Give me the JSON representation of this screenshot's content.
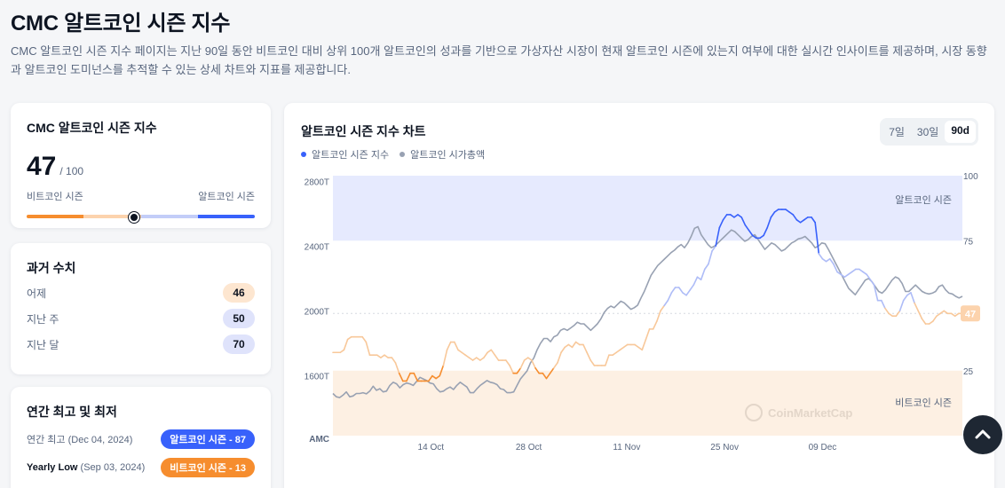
{
  "page": {
    "title": "CMC 알트코인 시즌 지수",
    "description": "CMC 알트코인 시즌 지수 페이지는 지난 90일 동안 비트코인 대비 상위 100개 알트코인의 성과를 기반으로 가상자산 시장이 현재 알트코인 시즌에 있는지 여부에 대한 실시간 인사이트를 제공하며, 시장 동향과 알트코인 도미넌스를 추적할 수 있는 상세 차트와 지표를 제공합니다."
  },
  "index_card": {
    "title": "CMC 알트코인 시즌 지수",
    "value": "47",
    "max": "/ 100",
    "left_label": "비트코인 시즌",
    "right_label": "알트코인 시즌",
    "level": 0.47
  },
  "history": {
    "title": "과거 수치",
    "rows": [
      {
        "label": "어제",
        "value": "46"
      },
      {
        "label": "지난 주",
        "value": "50"
      },
      {
        "label": "지난 달",
        "value": "70"
      }
    ]
  },
  "yearly": {
    "title": "연간 최고 및 최저",
    "high_label": "연간 최고",
    "high_date": "(Dec 04, 2024)",
    "high_badge": "알트코인 시즌 - 87",
    "low_label": "Yearly Low",
    "low_date": "(Sep 03, 2024)",
    "low_badge": "비트코인 시즌 - 13"
  },
  "colors": {
    "btc_orange": "#f68d2e",
    "alt_blue": "#3861fb",
    "gray_line": "#98a1b2"
  },
  "chart_data": {
    "type": "line",
    "title": "알트코인 시즌 지수 차트",
    "range_tabs": [
      "7일",
      "30일",
      "90d"
    ],
    "active_tab": "90d",
    "legend": [
      "알트코인 시즌 지수",
      "알트코인 시가총액"
    ],
    "x_tick_labels": [
      "14 Oct",
      "28 Oct",
      "11 Nov",
      "25 Nov",
      "09 Dec"
    ],
    "x_tick_day": [
      14,
      28,
      42,
      56,
      70
    ],
    "x_range_day": [
      0,
      90
    ],
    "left_axis": {
      "ticks": [
        "2800T",
        "2400T",
        "2000T",
        "1600T"
      ],
      "values": [
        2800,
        2400,
        2000,
        1600
      ],
      "range": [
        1230,
        2835
      ],
      "corner_label": "AMC"
    },
    "right_axis": {
      "ticks": [
        "100",
        "75",
        "25"
      ],
      "values": [
        100,
        75,
        25
      ],
      "range": [
        0,
        100
      ]
    },
    "zones": {
      "alt_label": "알트코인 시즌",
      "alt_from": 75,
      "btc_label": "비트코인 시즌",
      "btc_to": 25
    },
    "current_badge": "47",
    "current_value": 47,
    "watermark": "CoinMarketCap",
    "series": [
      {
        "name": "알트코인 시즌 지수",
        "axis": "right",
        "start_day": 0,
        "step_days": 1,
        "values": [
          32,
          32,
          32,
          33,
          37,
          38,
          38,
          38,
          38,
          36,
          31,
          31,
          31,
          30,
          31,
          30,
          30,
          28,
          24,
          21,
          21,
          24,
          24,
          21,
          21,
          21,
          21,
          23,
          22,
          23,
          27,
          33,
          36,
          36,
          33,
          32,
          31,
          30,
          29,
          30,
          29,
          30,
          32,
          33,
          31,
          29,
          29,
          29,
          27,
          24,
          24,
          26,
          29,
          30,
          29,
          26,
          24,
          24,
          22,
          24,
          26,
          28,
          32,
          34,
          35,
          34,
          36,
          35,
          35,
          32,
          29,
          27,
          27,
          27,
          27,
          31,
          31,
          32,
          33,
          34,
          35,
          35,
          35,
          34,
          33,
          37,
          41,
          41,
          44,
          48,
          50,
          52,
          55,
          57,
          57,
          55,
          54,
          56,
          58,
          61,
          60,
          64,
          66,
          71,
          73,
          80,
          83,
          85,
          85,
          84,
          85,
          84,
          81,
          79,
          77,
          76,
          76,
          77,
          80,
          84,
          86,
          87,
          87,
          87,
          86,
          85,
          83,
          82,
          83,
          84,
          84,
          82,
          70,
          68,
          67,
          68,
          66,
          63,
          62,
          61,
          62,
          63,
          64,
          64,
          63,
          62,
          60,
          58,
          52,
          52,
          49,
          47,
          46,
          46,
          48,
          52,
          54,
          55,
          51,
          48,
          45,
          43,
          43,
          44,
          46,
          47,
          48,
          47,
          47,
          46,
          47,
          47
        ]
      },
      {
        "name": "알트코인 시가총액",
        "axis": "left",
        "start_day": 0,
        "step_days": 1,
        "values": [
          1490,
          1470,
          1465,
          1480,
          1500,
          1470,
          1475,
          1490,
          1490,
          1495,
          1488,
          1505,
          1535,
          1510,
          1520,
          1500,
          1505,
          1540,
          1560,
          1550,
          1525,
          1545,
          1555,
          1550,
          1540,
          1565,
          1590,
          1580,
          1570,
          1555,
          1550,
          1520,
          1500,
          1505,
          1520,
          1530,
          1515,
          1540,
          1560,
          1545,
          1530,
          1495,
          1495,
          1520,
          1540,
          1555,
          1570,
          1560,
          1555,
          1545,
          1520,
          1515,
          1495,
          1495,
          1500,
          1540,
          1580,
          1605,
          1630,
          1680,
          1710,
          1760,
          1800,
          1830,
          1830,
          1810,
          1840,
          1850,
          1880,
          1890,
          1880,
          1895,
          1910,
          1930,
          1920,
          1920,
          1900,
          1880,
          1900,
          1920,
          1950,
          1990,
          2015,
          2030,
          2020,
          2040,
          2060,
          2050,
          2030,
          2010,
          2020,
          2035,
          2080,
          2120,
          2170,
          2220,
          2250,
          2280,
          2300,
          2320,
          2340,
          2360,
          2375,
          2395,
          2410,
          2390,
          2420,
          2460,
          2510,
          2520,
          2470,
          2440,
          2410,
          2390,
          2400,
          2420,
          2440,
          2460,
          2480,
          2500,
          2490,
          2470,
          2450,
          2430,
          2440,
          2460,
          2470,
          2440,
          2410,
          2380,
          2400,
          2420,
          2410,
          2390,
          2370,
          2380,
          2400,
          2420,
          2430,
          2445,
          2450,
          2460,
          2440,
          2420,
          2390,
          2400,
          2420,
          2415,
          2380,
          2340,
          2300,
          2260,
          2220,
          2180,
          2140,
          2120,
          2100,
          2130,
          2160,
          2190,
          2200,
          2180,
          2150,
          2120,
          2110,
          2130,
          2160,
          2190,
          2210,
          2200,
          2170,
          2120,
          2120,
          2140,
          2160,
          2140,
          2120,
          2110,
          2105,
          2110,
          2120,
          2150,
          2160,
          2130,
          2110,
          2105,
          2090,
          2080,
          2090
        ]
      }
    ]
  }
}
